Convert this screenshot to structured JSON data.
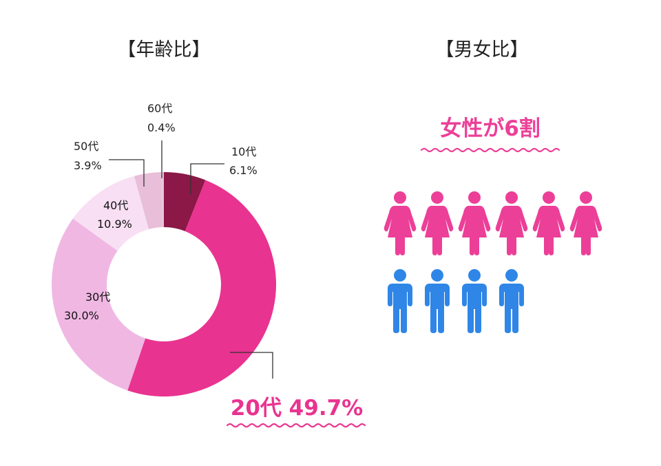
{
  "age_panel": {
    "title": "【年齢比】"
  },
  "gender_panel": {
    "title": "【男女比】",
    "headline": "女性が6割",
    "female_icon_count": 6,
    "male_icon_count": 4,
    "female_color": "#ec3f98",
    "male_color": "#2f86e6"
  },
  "chart_data": [
    {
      "type": "pie",
      "title": "【年齢比】",
      "categories": [
        "10代",
        "20代",
        "30代",
        "40代",
        "50代",
        "60代"
      ],
      "values": [
        6.1,
        49.7,
        30.0,
        10.9,
        3.9,
        0.4
      ],
      "value_labels": [
        "6.1%",
        "49.7%",
        "30.0%",
        "10.9%",
        "3.9%",
        "0.4%"
      ],
      "colors": [
        "#8b1846",
        "#e93390",
        "#f0b7e3",
        "#f8dff3",
        "#e8bed8",
        "#e5c7da"
      ],
      "center_hole": true,
      "highlight_label": "20代 49.7%",
      "legend": "none"
    },
    {
      "type": "pictogram",
      "title": "【男女比】",
      "categories": [
        "女性",
        "男性"
      ],
      "values": [
        6,
        4
      ],
      "headline": "女性が6割",
      "legend": "none"
    }
  ]
}
